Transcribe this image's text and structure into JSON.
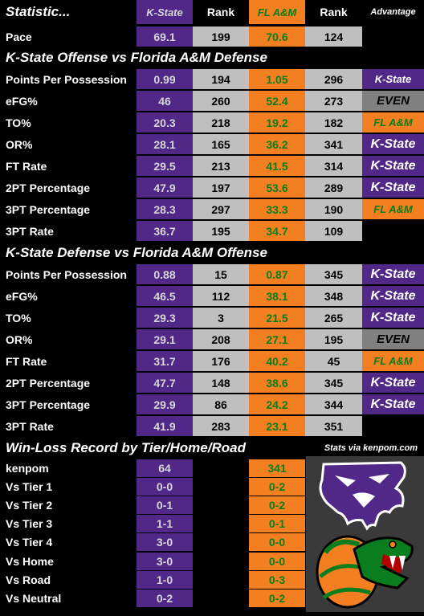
{
  "header": {
    "statistic": "Statistic...",
    "kstate": "K-State",
    "rank1": "Rank",
    "flam": "FL A&M",
    "rank2": "Rank",
    "advantage": "Advantage"
  },
  "pace": {
    "label": "Pace",
    "ks": "69.1",
    "ks_rank": "199",
    "fl": "70.6",
    "fl_rank": "124",
    "adv": ""
  },
  "offense": {
    "title": "K-State Offense vs Florida A&M Defense",
    "rows": [
      {
        "label": "Points Per Possession",
        "ks": "0.99",
        "ks_rank": "194",
        "fl": "1.05",
        "fl_rank": "296",
        "adv": "K-State",
        "adv_type": "ks-small"
      },
      {
        "label": "eFG%",
        "ks": "46",
        "ks_rank": "260",
        "fl": "52.4",
        "fl_rank": "273",
        "adv": "EVEN",
        "adv_type": "even"
      },
      {
        "label": "TO%",
        "ks": "20.3",
        "ks_rank": "218",
        "fl": "19.2",
        "fl_rank": "182",
        "adv": "FL A&M",
        "adv_type": "fl"
      },
      {
        "label": "OR%",
        "ks": "28.1",
        "ks_rank": "165",
        "fl": "36.2",
        "fl_rank": "341",
        "adv": "K-State",
        "adv_type": "ks"
      },
      {
        "label": "FT Rate",
        "ks": "29.5",
        "ks_rank": "213",
        "fl": "41.5",
        "fl_rank": "314",
        "adv": "K-State",
        "adv_type": "ks"
      },
      {
        "label": "2PT Percentage",
        "ks": "47.9",
        "ks_rank": "197",
        "fl": "53.6",
        "fl_rank": "289",
        "adv": "K-State",
        "adv_type": "ks"
      },
      {
        "label": "3PT Percentage",
        "ks": "28.3",
        "ks_rank": "297",
        "fl": "33.3",
        "fl_rank": "190",
        "adv": "FL A&M",
        "adv_type": "fl"
      },
      {
        "label": "3PT Rate",
        "ks": "36.7",
        "ks_rank": "195",
        "fl": "34.7",
        "fl_rank": "109",
        "adv": "",
        "adv_type": "none"
      }
    ]
  },
  "defense": {
    "title": "K-State Defense vs Florida A&M Offense",
    "rows": [
      {
        "label": "Points Per Possession",
        "ks": "0.88",
        "ks_rank": "15",
        "fl": "0.87",
        "fl_rank": "345",
        "adv": "K-State",
        "adv_type": "ks"
      },
      {
        "label": "eFG%",
        "ks": "46.5",
        "ks_rank": "112",
        "fl": "38.1",
        "fl_rank": "348",
        "adv": "K-State",
        "adv_type": "ks"
      },
      {
        "label": "TO%",
        "ks": "29.3",
        "ks_rank": "3",
        "fl": "21.5",
        "fl_rank": "265",
        "adv": "K-State",
        "adv_type": "ks"
      },
      {
        "label": "OR%",
        "ks": "29.1",
        "ks_rank": "208",
        "fl": "27.1",
        "fl_rank": "195",
        "adv": "EVEN",
        "adv_type": "even"
      },
      {
        "label": "FT Rate",
        "ks": "31.7",
        "ks_rank": "176",
        "fl": "40.2",
        "fl_rank": "45",
        "adv": "FL A&M",
        "adv_type": "fl"
      },
      {
        "label": "2PT Percentage",
        "ks": "47.7",
        "ks_rank": "148",
        "fl": "38.6",
        "fl_rank": "345",
        "adv": "K-State",
        "adv_type": "ks"
      },
      {
        "label": "3PT Percentage",
        "ks": "29.9",
        "ks_rank": "86",
        "fl": "24.2",
        "fl_rank": "344",
        "adv": "K-State",
        "adv_type": "ks"
      },
      {
        "label": "3PT Rate",
        "ks": "41.9",
        "ks_rank": "283",
        "fl": "23.1",
        "fl_rank": "351",
        "adv": "",
        "adv_type": "none"
      }
    ]
  },
  "record": {
    "title": "Win-Loss Record by Tier/Home/Road",
    "credit": "Stats via kenpom.com",
    "rows": [
      {
        "label": "kenpom",
        "ks": "64",
        "fl": "341"
      },
      {
        "label": "Vs Tier 1",
        "ks": "0-0",
        "fl": "0-2"
      },
      {
        "label": "Vs Tier 2",
        "ks": "0-1",
        "fl": "0-2"
      },
      {
        "label": "Vs Tier 3",
        "ks": "1-1",
        "fl": "0-1"
      },
      {
        "label": "Vs Tier 4",
        "ks": "3-0",
        "fl": "0-0"
      },
      {
        "label": "Vs Home",
        "ks": "3-0",
        "fl": "0-0"
      },
      {
        "label": "Vs Road",
        "ks": "1-0",
        "fl": "0-3"
      },
      {
        "label": "Vs Neutral",
        "ks": "0-2",
        "fl": "0-2"
      }
    ]
  },
  "logos": {
    "top": "wildcat-logo-icon",
    "bottom": "rattler-logo-icon"
  },
  "colors": {
    "kstate_purple": "#512888",
    "famu_orange": "#f47f20",
    "famu_green": "#0a7d1e",
    "rank_gray": "#bfbfbf",
    "even_gray": "#808080"
  }
}
